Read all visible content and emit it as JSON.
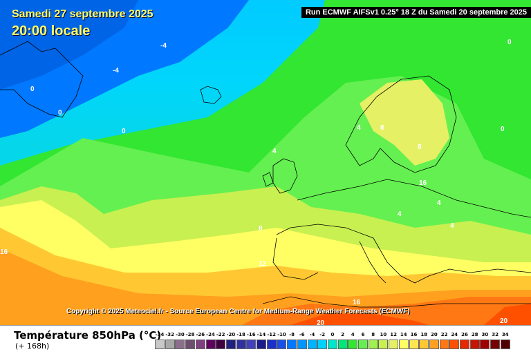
{
  "header": {
    "date": "Samedi 27 septembre 2025",
    "time": "20:00 locale",
    "run": "Run ECMWF AIFSv1 0.25° 18 Z du Samedi 20 septembre 2025"
  },
  "copyright": "Copyright © 2025 Meteociel.fr - Source European Centre for Medium-Range Weather Forecasts (ECMWF)",
  "footer": {
    "parameter": "Température 850hPa (°C)",
    "forecast": "(+ 168h)"
  },
  "isolines": [
    "-4",
    "-4",
    "0",
    "0",
    "0",
    "0",
    "0",
    "4",
    "4",
    "8",
    "8",
    "12",
    "16",
    "16",
    "20",
    "20",
    "16",
    "4",
    "4",
    "4",
    "8"
  ],
  "colorscale": {
    "values": [
      "-34",
      "-32",
      "-30",
      "-28",
      "-26",
      "-24",
      "-22",
      "-20",
      "-18",
      "-16",
      "-14",
      "-12",
      "-10",
      "-8",
      "-6",
      "-4",
      "-2",
      "0",
      "2",
      "4",
      "6",
      "8",
      "10",
      "12",
      "14",
      "16",
      "18",
      "20",
      "22",
      "24",
      "26",
      "28",
      "30",
      "32",
      "34"
    ],
    "colors": [
      "#c8c8c8",
      "#a8a8a8",
      "#8c6e8c",
      "#6e4e6e",
      "#804080",
      "#600060",
      "#400040",
      "#202080",
      "#3030a0",
      "#4040c0",
      "#1a1a8c",
      "#1a30c8",
      "#1a50e8",
      "#0078ff",
      "#0096ff",
      "#00b4ff",
      "#00d2ff",
      "#00e6c8",
      "#00e678",
      "#32e632",
      "#64f050",
      "#a0f050",
      "#c8f050",
      "#e6f064",
      "#ffff64",
      "#ffe650",
      "#ffc832",
      "#ffa01e",
      "#ff7814",
      "#ff5000",
      "#e62800",
      "#c81400",
      "#a00000",
      "#780000",
      "#500000"
    ]
  }
}
